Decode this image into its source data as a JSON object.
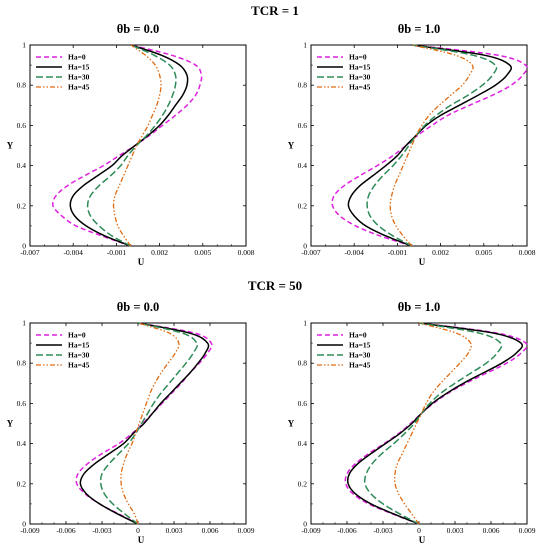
{
  "row_titles": [
    "TCR = 1",
    "TCR = 50"
  ],
  "colors": {
    "Ha=0": "#e020e0",
    "Ha=15": "#000000",
    "Ha=30": "#2e8b57",
    "Ha=45": "#e06a10"
  },
  "chart_data": [
    {
      "type": "line",
      "title": "θb = 0.0",
      "xlabel": "U",
      "ylabel": "Y",
      "xlim": [
        -0.007,
        0.008
      ],
      "ylim": [
        0,
        1
      ],
      "xticks": [
        "-0.007",
        "-0.004",
        "-0.001",
        "0.002",
        "0.005",
        "0.008"
      ],
      "yticks": [
        "0",
        "0.2",
        "0.4",
        "0.6",
        "0.8",
        "1"
      ],
      "grid": false,
      "legend": "top-left",
      "series": [
        {
          "name": "Ha=0",
          "y": [
            0,
            0.05,
            0.1,
            0.15,
            0.2,
            0.25,
            0.3,
            0.35,
            0.4,
            0.45,
            0.5,
            0.55,
            0.6,
            0.65,
            0.7,
            0.75,
            0.8,
            0.85,
            0.9,
            0.95,
            1
          ],
          "x": [
            0,
            -0.002,
            -0.0038,
            -0.0048,
            -0.0054,
            -0.0052,
            -0.0044,
            -0.0032,
            -0.0019,
            -0.0008,
            0.0003,
            0.0013,
            0.0022,
            0.0031,
            0.0039,
            0.0045,
            0.0048,
            0.0049,
            0.0045,
            0.0028,
            0
          ]
        },
        {
          "name": "Ha=15",
          "y": [
            0,
            0.05,
            0.1,
            0.15,
            0.2,
            0.25,
            0.3,
            0.35,
            0.4,
            0.45,
            0.5,
            0.55,
            0.6,
            0.65,
            0.7,
            0.75,
            0.8,
            0.85,
            0.9,
            0.95,
            1
          ],
          "x": [
            0,
            -0.0018,
            -0.0031,
            -0.0039,
            -0.0042,
            -0.004,
            -0.0033,
            -0.0023,
            -0.0013,
            -0.0006,
            0.0003,
            0.0012,
            0.002,
            0.0026,
            0.0031,
            0.0036,
            0.0039,
            0.0039,
            0.0034,
            0.0021,
            0
          ]
        },
        {
          "name": "Ha=30",
          "y": [
            0,
            0.05,
            0.1,
            0.15,
            0.2,
            0.25,
            0.3,
            0.35,
            0.4,
            0.45,
            0.5,
            0.55,
            0.6,
            0.65,
            0.7,
            0.75,
            0.8,
            0.85,
            0.9,
            0.95,
            1
          ],
          "x": [
            0,
            -0.0013,
            -0.0022,
            -0.0028,
            -0.003,
            -0.0028,
            -0.0022,
            -0.0014,
            -0.0007,
            -0.0002,
            0.0004,
            0.0011,
            0.0017,
            0.0022,
            0.0026,
            0.0029,
            0.0031,
            0.0031,
            0.0027,
            0.0016,
            0
          ]
        },
        {
          "name": "Ha=45",
          "y": [
            0,
            0.05,
            0.1,
            0.15,
            0.2,
            0.25,
            0.3,
            0.35,
            0.4,
            0.45,
            0.5,
            0.55,
            0.6,
            0.65,
            0.7,
            0.75,
            0.8,
            0.85,
            0.9,
            0.95,
            1
          ],
          "x": [
            0,
            -0.0005,
            -0.0009,
            -0.0011,
            -0.0012,
            -0.0011,
            -0.0008,
            -0.0005,
            -0.0002,
            0.0001,
            0.0004,
            0.0008,
            0.0012,
            0.0015,
            0.0018,
            0.002,
            0.0021,
            0.002,
            0.0017,
            0.001,
            0
          ]
        }
      ]
    },
    {
      "type": "line",
      "title": "θb = 1.0",
      "xlabel": "U",
      "ylabel": "Y",
      "xlim": [
        -0.007,
        0.008
      ],
      "ylim": [
        0,
        1
      ],
      "xticks": [
        "-0.007",
        "-0.004",
        "-0.001",
        "0.002",
        "0.005",
        "0.008"
      ],
      "yticks": [
        "0",
        "0.2",
        "0.4",
        "0.6",
        "0.8",
        "1"
      ],
      "grid": false,
      "legend": "top-left",
      "series": [
        {
          "name": "Ha=0",
          "y": [
            0,
            0.05,
            0.1,
            0.15,
            0.2,
            0.25,
            0.3,
            0.35,
            0.4,
            0.45,
            0.5,
            0.55,
            0.6,
            0.65,
            0.7,
            0.75,
            0.8,
            0.85,
            0.9,
            0.95,
            1
          ],
          "x": [
            0,
            -0.0022,
            -0.0039,
            -0.005,
            -0.0055,
            -0.0054,
            -0.0047,
            -0.0036,
            -0.0024,
            -0.0013,
            -0.0004,
            0.0004,
            0.0014,
            0.0025,
            0.004,
            0.0056,
            0.0069,
            0.0077,
            0.0079,
            0.0059,
            0
          ]
        },
        {
          "name": "Ha=15",
          "y": [
            0,
            0.05,
            0.1,
            0.15,
            0.2,
            0.25,
            0.3,
            0.35,
            0.4,
            0.45,
            0.5,
            0.55,
            0.6,
            0.65,
            0.7,
            0.75,
            0.8,
            0.85,
            0.9,
            0.95,
            1
          ],
          "x": [
            0,
            -0.0018,
            -0.0032,
            -0.004,
            -0.0044,
            -0.0042,
            -0.0036,
            -0.0027,
            -0.0018,
            -0.001,
            -0.0004,
            0.0003,
            0.001,
            0.002,
            0.0033,
            0.0046,
            0.0058,
            0.0066,
            0.0068,
            0.005,
            0
          ]
        },
        {
          "name": "Ha=30",
          "y": [
            0,
            0.05,
            0.1,
            0.15,
            0.2,
            0.25,
            0.3,
            0.35,
            0.4,
            0.45,
            0.5,
            0.55,
            0.6,
            0.65,
            0.7,
            0.75,
            0.8,
            0.85,
            0.9,
            0.95,
            1
          ],
          "x": [
            0,
            -0.0013,
            -0.0023,
            -0.0029,
            -0.0031,
            -0.003,
            -0.0026,
            -0.002,
            -0.0013,
            -0.0007,
            -0.0002,
            0.0003,
            0.0009,
            0.0017,
            0.0027,
            0.0039,
            0.0049,
            0.0056,
            0.0058,
            0.0042,
            0
          ]
        },
        {
          "name": "Ha=45",
          "y": [
            0,
            0.05,
            0.1,
            0.15,
            0.2,
            0.25,
            0.3,
            0.35,
            0.4,
            0.45,
            0.5,
            0.55,
            0.6,
            0.65,
            0.7,
            0.75,
            0.8,
            0.85,
            0.9,
            0.95,
            1
          ],
          "x": [
            0,
            -0.0006,
            -0.0011,
            -0.0014,
            -0.0015,
            -0.0014,
            -0.0012,
            -0.0009,
            -0.0006,
            -0.0003,
            0,
            0.0003,
            0.0007,
            0.0012,
            0.0019,
            0.0027,
            0.0035,
            0.004,
            0.0042,
            0.003,
            0
          ]
        }
      ]
    },
    {
      "type": "line",
      "title": "θb = 0.0",
      "xlabel": "U",
      "ylabel": "Y",
      "xlim": [
        -0.009,
        0.009
      ],
      "ylim": [
        0,
        1
      ],
      "xticks": [
        "-0.009",
        "-0.006",
        "-0.003",
        "0",
        "0.003",
        "0.006",
        "0.009"
      ],
      "yticks": [
        "0",
        "0.2",
        "0.4",
        "0.6",
        "0.8",
        "1"
      ],
      "grid": false,
      "legend": "top-left",
      "series": [
        {
          "name": "Ha=0",
          "y": [
            0,
            0.05,
            0.1,
            0.15,
            0.2,
            0.25,
            0.3,
            0.35,
            0.4,
            0.45,
            0.5,
            0.55,
            0.6,
            0.65,
            0.7,
            0.75,
            0.8,
            0.85,
            0.9,
            0.95,
            1
          ],
          "x": [
            0,
            -0.0016,
            -0.0032,
            -0.0044,
            -0.0051,
            -0.005,
            -0.0042,
            -0.003,
            -0.0016,
            -0.0005,
            0.0004,
            0.0012,
            0.002,
            0.0028,
            0.0036,
            0.0043,
            0.0051,
            0.0058,
            0.0061,
            0.0047,
            0
          ]
        },
        {
          "name": "Ha=15",
          "y": [
            0,
            0.05,
            0.1,
            0.15,
            0.2,
            0.25,
            0.3,
            0.35,
            0.4,
            0.45,
            0.5,
            0.55,
            0.6,
            0.65,
            0.7,
            0.75,
            0.8,
            0.85,
            0.9,
            0.95,
            1
          ],
          "x": [
            0,
            -0.0017,
            -0.0032,
            -0.0043,
            -0.0048,
            -0.0045,
            -0.0036,
            -0.0024,
            -0.0012,
            -0.0004,
            0.0005,
            0.0012,
            0.0019,
            0.0027,
            0.0035,
            0.0043,
            0.005,
            0.0056,
            0.0058,
            0.0043,
            0
          ]
        },
        {
          "name": "Ha=30",
          "y": [
            0,
            0.05,
            0.1,
            0.15,
            0.2,
            0.25,
            0.3,
            0.35,
            0.4,
            0.45,
            0.5,
            0.55,
            0.6,
            0.65,
            0.7,
            0.75,
            0.8,
            0.85,
            0.9,
            0.95,
            1
          ],
          "x": [
            0,
            -0.0011,
            -0.0021,
            -0.0028,
            -0.0031,
            -0.003,
            -0.0024,
            -0.0016,
            -0.0008,
            -0.0002,
            0.0003,
            0.0008,
            0.0013,
            0.0019,
            0.0026,
            0.0033,
            0.004,
            0.0046,
            0.0049,
            0.0037,
            0
          ]
        },
        {
          "name": "Ha=45",
          "y": [
            0,
            0.05,
            0.1,
            0.15,
            0.2,
            0.25,
            0.3,
            0.35,
            0.4,
            0.45,
            0.5,
            0.55,
            0.6,
            0.65,
            0.7,
            0.75,
            0.8,
            0.85,
            0.9,
            0.95,
            1
          ],
          "x": [
            0,
            -0.0003,
            -0.0008,
            -0.0012,
            -0.0014,
            -0.0014,
            -0.0012,
            -0.0009,
            -0.0005,
            -0.0002,
            0.0001,
            0.0004,
            0.0007,
            0.001,
            0.0014,
            0.0019,
            0.0025,
            0.0031,
            0.0034,
            0.0026,
            0
          ]
        }
      ]
    },
    {
      "type": "line",
      "title": "θb = 1.0",
      "xlabel": "U",
      "ylabel": "Y",
      "xlim": [
        -0.009,
        0.009
      ],
      "ylim": [
        0,
        1
      ],
      "xticks": [
        "-0.009",
        "-0.006",
        "-0.003",
        "0",
        "0.003",
        "0.006",
        "0.009"
      ],
      "yticks": [
        "0",
        "0.2",
        "0.4",
        "0.6",
        "0.8",
        "1"
      ],
      "grid": false,
      "legend": "top-left",
      "series": [
        {
          "name": "Ha=0",
          "y": [
            0,
            0.05,
            0.1,
            0.15,
            0.2,
            0.25,
            0.3,
            0.35,
            0.4,
            0.45,
            0.5,
            0.55,
            0.6,
            0.65,
            0.7,
            0.75,
            0.8,
            0.85,
            0.9,
            0.95,
            1
          ],
          "x": [
            0,
            -0.0022,
            -0.0042,
            -0.0055,
            -0.0061,
            -0.006,
            -0.0053,
            -0.0042,
            -0.0029,
            -0.0017,
            -0.0007,
            0.0002,
            0.0012,
            0.0024,
            0.0039,
            0.0056,
            0.0073,
            0.0085,
            0.0089,
            0.0065,
            0
          ]
        },
        {
          "name": "Ha=15",
          "y": [
            0,
            0.05,
            0.1,
            0.15,
            0.2,
            0.25,
            0.3,
            0.35,
            0.4,
            0.45,
            0.5,
            0.55,
            0.6,
            0.65,
            0.7,
            0.75,
            0.8,
            0.85,
            0.9,
            0.95,
            1
          ],
          "x": [
            0,
            -0.0021,
            -0.004,
            -0.0053,
            -0.0059,
            -0.0058,
            -0.0051,
            -0.004,
            -0.0028,
            -0.0016,
            -0.0006,
            0.0002,
            0.0011,
            0.0023,
            0.0037,
            0.0053,
            0.0069,
            0.0081,
            0.0085,
            0.0062,
            0
          ]
        },
        {
          "name": "Ha=30",
          "y": [
            0,
            0.05,
            0.1,
            0.15,
            0.2,
            0.25,
            0.3,
            0.35,
            0.4,
            0.45,
            0.5,
            0.55,
            0.6,
            0.65,
            0.7,
            0.75,
            0.8,
            0.85,
            0.9,
            0.95,
            1
          ],
          "x": [
            0,
            -0.0016,
            -0.003,
            -0.004,
            -0.0045,
            -0.0044,
            -0.0039,
            -0.0031,
            -0.0021,
            -0.0012,
            -0.0004,
            0.0002,
            0.0009,
            0.0018,
            0.003,
            0.0043,
            0.0056,
            0.0065,
            0.0068,
            0.005,
            0
          ]
        },
        {
          "name": "Ha=45",
          "y": [
            0,
            0.05,
            0.1,
            0.15,
            0.2,
            0.25,
            0.3,
            0.35,
            0.4,
            0.45,
            0.5,
            0.55,
            0.6,
            0.65,
            0.7,
            0.75,
            0.8,
            0.85,
            0.9,
            0.95,
            1
          ],
          "x": [
            0,
            -0.0006,
            -0.0012,
            -0.0017,
            -0.002,
            -0.002,
            -0.0018,
            -0.0014,
            -0.001,
            -0.0006,
            -0.0002,
            0.0002,
            0.0006,
            0.0011,
            0.0018,
            0.0026,
            0.0034,
            0.0041,
            0.0043,
            0.0031,
            0
          ]
        }
      ]
    }
  ]
}
